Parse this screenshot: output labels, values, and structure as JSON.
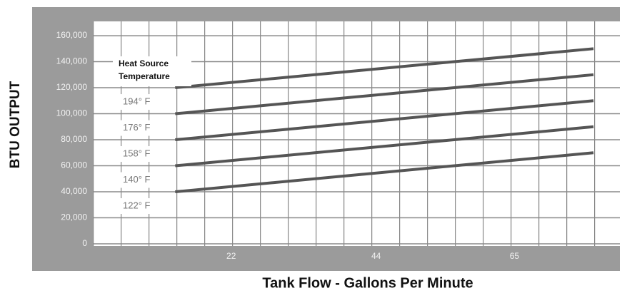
{
  "chart_data": {
    "type": "line",
    "ylabel": "BTU  OUTPUT",
    "xlabel": "Tank Flow - Gallons Per Minute",
    "annotation": [
      "Heat Source",
      "Temperature"
    ],
    "x": [
      13.5,
      77
    ],
    "xlim": [
      1,
      81
    ],
    "xticks": [
      22,
      44,
      65
    ],
    "ylim": [
      0,
      171000
    ],
    "yticks": [
      0,
      {
        "value": 20000,
        "label": "20,000"
      },
      {
        "value": 40000,
        "label": "40,000"
      },
      {
        "value": 60000,
        "label": "60,000"
      },
      {
        "value": 80000,
        "label": "80,000"
      },
      {
        "value": 100000,
        "label": "100,000"
      },
      {
        "value": 120000,
        "label": "120,000"
      },
      {
        "value": 140000,
        "label": "140,000"
      },
      {
        "value": 160000,
        "label": "160,000"
      }
    ],
    "grid": true,
    "series": [
      {
        "name": "122° F",
        "color": "#555555",
        "values": [
          40000,
          70000
        ]
      },
      {
        "name": "140° F",
        "color": "#555555",
        "values": [
          60000,
          90000
        ]
      },
      {
        "name": "158° F",
        "color": "#555555",
        "values": [
          80000,
          110000
        ]
      },
      {
        "name": "176° F",
        "color": "#555555",
        "values": [
          100000,
          130000
        ]
      },
      {
        "name": "194° F",
        "color": "#555555",
        "values": [
          120000,
          150000
        ]
      }
    ]
  }
}
